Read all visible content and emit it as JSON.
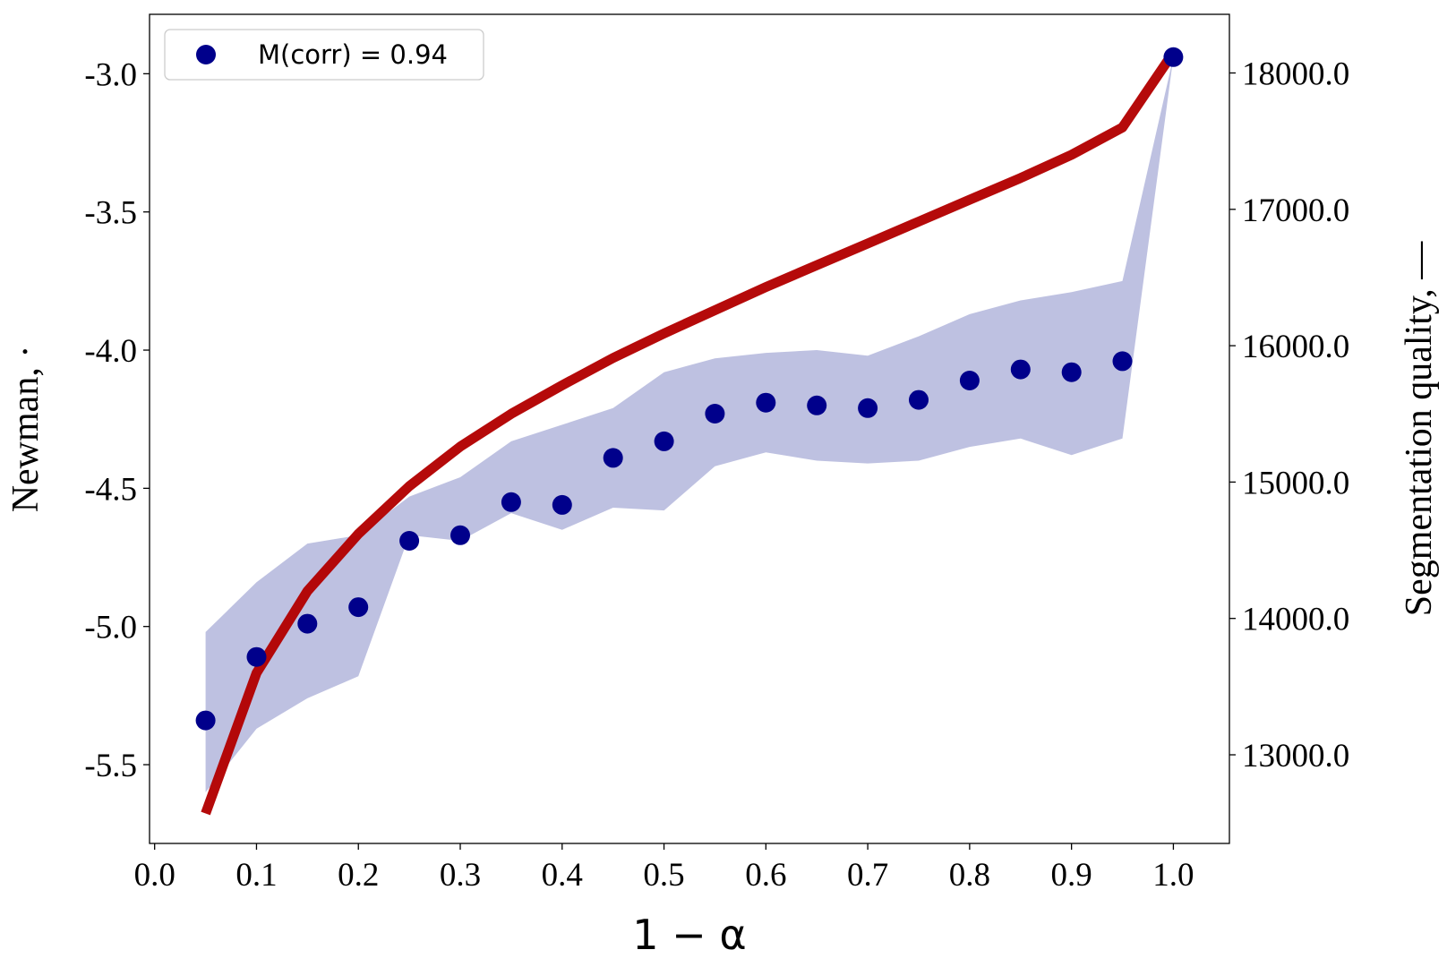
{
  "chart_data": {
    "type": "line+scatter",
    "x": [
      0.05,
      0.1,
      0.15,
      0.2,
      0.25,
      0.3,
      0.35,
      0.4,
      0.45,
      0.5,
      0.55,
      0.6,
      0.65,
      0.7,
      0.75,
      0.8,
      0.85,
      0.9,
      0.95,
      1.0
    ],
    "xlabel": "1 − α",
    "ylabel_left": "Newman, ·",
    "ylabel_right": "Segmentation quality, —",
    "xlim": [
      -0.005,
      1.055
    ],
    "ylim_left": [
      -5.785,
      -2.785
    ],
    "ylim_right": [
      12350,
      18430
    ],
    "x_ticks": [
      0.0,
      0.1,
      0.2,
      0.3,
      0.4,
      0.5,
      0.6,
      0.7,
      0.8,
      0.9,
      1.0
    ],
    "x_tick_labels": [
      "0.0",
      "0.1",
      "0.2",
      "0.3",
      "0.4",
      "0.5",
      "0.6",
      "0.7",
      "0.8",
      "0.9",
      "1.0"
    ],
    "y_left_ticks": [
      -5.5,
      -5.0,
      -4.5,
      -4.0,
      -3.5,
      -3.0
    ],
    "y_left_tick_labels": [
      "-5.5",
      "-5.0",
      "-4.5",
      "-4.0",
      "-3.5",
      "-3.0"
    ],
    "y_right_ticks": [
      13000,
      14000,
      15000,
      16000,
      17000,
      18000
    ],
    "y_right_tick_labels": [
      "13000.0",
      "14000.0",
      "15000.0",
      "16000.0",
      "17000.0",
      "18000.0"
    ],
    "grid": false,
    "legend": {
      "placement": "top-left",
      "entries": [
        {
          "series": "newman",
          "label": "M(corr) = 0.94"
        }
      ]
    },
    "series": [
      {
        "key": "newman",
        "kind": "scatter",
        "axis": "left",
        "color": "#00008b",
        "values": [
          -5.34,
          -5.11,
          -4.99,
          -4.93,
          -4.69,
          -4.67,
          -4.55,
          -4.56,
          -4.39,
          -4.33,
          -4.23,
          -4.19,
          -4.2,
          -4.21,
          -4.18,
          -4.11,
          -4.07,
          -4.08,
          -4.04,
          -2.94
        ],
        "band_lower": [
          -5.6,
          -5.37,
          -5.26,
          -5.18,
          -4.67,
          -4.69,
          -4.59,
          -4.65,
          -4.57,
          -4.58,
          -4.42,
          -4.37,
          -4.4,
          -4.41,
          -4.4,
          -4.35,
          -4.32,
          -4.38,
          -4.32,
          -2.94
        ],
        "band_upper": [
          -5.02,
          -4.84,
          -4.7,
          -4.67,
          -4.53,
          -4.46,
          -4.33,
          -4.27,
          -4.21,
          -4.08,
          -4.03,
          -4.01,
          -4.0,
          -4.02,
          -3.95,
          -3.87,
          -3.82,
          -3.79,
          -3.75,
          -2.94
        ],
        "band_color": "#bbbedf"
      },
      {
        "key": "segmentation",
        "kind": "line",
        "axis": "right",
        "color": "#b20000",
        "values": [
          12570,
          13600,
          14200,
          14620,
          14970,
          15260,
          15500,
          15710,
          15910,
          16090,
          16260,
          16430,
          16590,
          16750,
          16910,
          17070,
          17230,
          17400,
          17600,
          18150
        ]
      }
    ]
  }
}
